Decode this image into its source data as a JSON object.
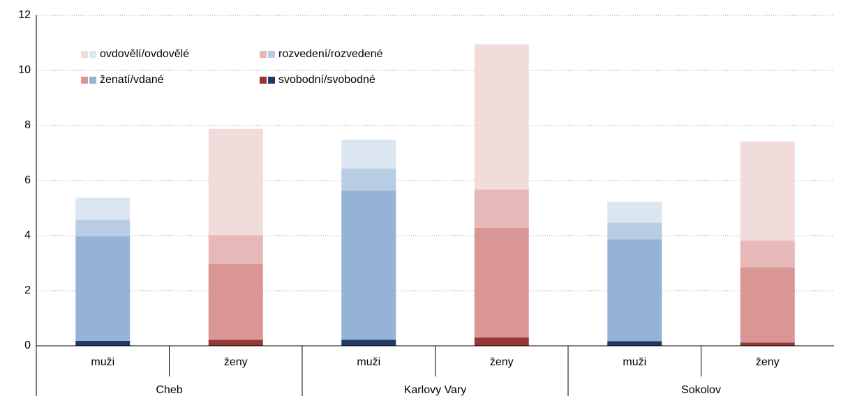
{
  "chart_data": {
    "type": "stacked_bar",
    "categories": [
      "muži",
      "ženy",
      "muži",
      "ženy",
      "muži",
      "ženy"
    ],
    "group_labels": [
      "Cheb",
      "Karlovy Vary",
      "Sokolov"
    ],
    "series": [
      {
        "name": "svobodní/svobodné",
        "colors": [
          "#1f3864",
          "#953735"
        ],
        "values": [
          0.18,
          0.22,
          0.22,
          0.3,
          0.17,
          0.12
        ]
      },
      {
        "name": "ženatí/vdané",
        "colors": [
          "#95b3d7",
          "#d99694"
        ],
        "values": [
          3.8,
          2.75,
          5.42,
          3.98,
          3.7,
          2.73
        ]
      },
      {
        "name": "rozvedení/rozvedené",
        "colors": [
          "#b8cce4",
          "#e6b9b8"
        ],
        "values": [
          0.6,
          1.05,
          0.8,
          1.4,
          0.6,
          0.97
        ]
      },
      {
        "name": "ovdovělí/ovdovělé",
        "colors": [
          "#dce6f1",
          "#f2dcdb"
        ],
        "values": [
          0.8,
          3.86,
          1.04,
          5.27,
          0.76,
          3.6
        ]
      }
    ],
    "ylim": [
      0,
      12
    ],
    "yticks": [
      0,
      2,
      4,
      6,
      8,
      10,
      12
    ],
    "grid": true
  }
}
